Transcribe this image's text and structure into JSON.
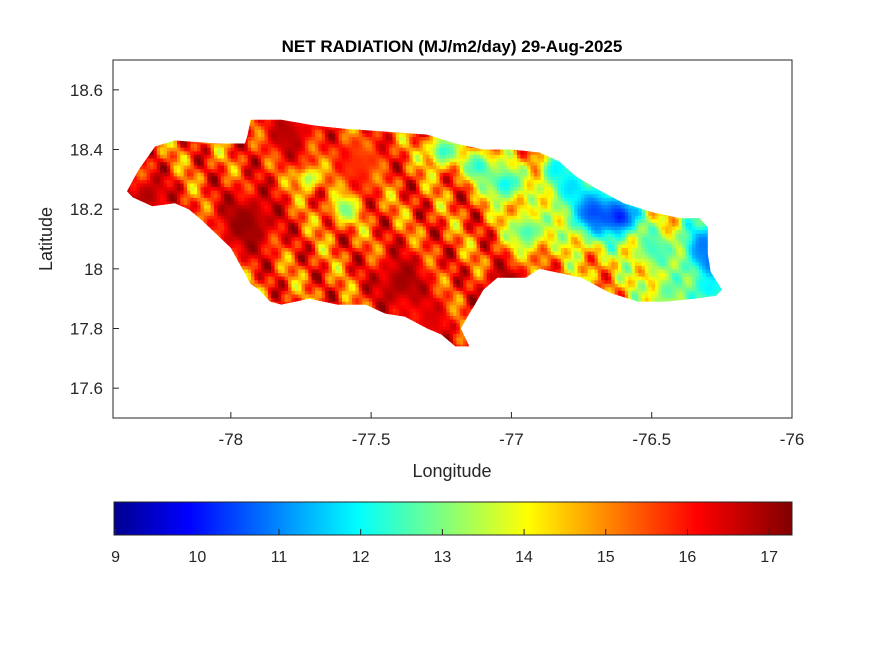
{
  "chart_data": {
    "type": "heatmap",
    "title": "NET RADIATION (MJ/m2/day) 29-Aug-2025",
    "xlabel": "Longitude",
    "ylabel": "Latitude",
    "xlim": [
      -78.42,
      -76.0
    ],
    "ylim": [
      17.5,
      18.7
    ],
    "xticks": [
      -78,
      -77.5,
      -77,
      -76.5,
      -76
    ],
    "yticks": [
      17.6,
      17.8,
      18,
      18.2,
      18.4,
      18.6
    ],
    "colorbar": {
      "colormap": "jet",
      "orientation": "horizontal",
      "placement": "below",
      "range": [
        8.98,
        17.28
      ],
      "ticks": [
        9,
        10,
        11,
        12,
        13,
        14,
        15,
        16,
        17
      ]
    },
    "grid": false,
    "region_outline_lonlat": [
      [
        -78.37,
        18.26
      ],
      [
        -78.33,
        18.33
      ],
      [
        -78.27,
        18.41
      ],
      [
        -78.2,
        18.43
      ],
      [
        -78.05,
        18.42
      ],
      [
        -77.95,
        18.42
      ],
      [
        -77.94,
        18.45
      ],
      [
        -77.93,
        18.5
      ],
      [
        -77.82,
        18.5
      ],
      [
        -77.7,
        18.48
      ],
      [
        -77.6,
        18.47
      ],
      [
        -77.45,
        18.46
      ],
      [
        -77.3,
        18.45
      ],
      [
        -77.2,
        18.42
      ],
      [
        -77.1,
        18.4
      ],
      [
        -77.0,
        18.4
      ],
      [
        -76.9,
        18.39
      ],
      [
        -76.83,
        18.36
      ],
      [
        -76.77,
        18.31
      ],
      [
        -76.7,
        18.27
      ],
      [
        -76.6,
        18.22
      ],
      [
        -76.5,
        18.19
      ],
      [
        -76.4,
        18.17
      ],
      [
        -76.33,
        18.17
      ],
      [
        -76.3,
        18.14
      ],
      [
        -76.3,
        18.05
      ],
      [
        -76.29,
        17.99
      ],
      [
        -76.25,
        17.93
      ],
      [
        -76.27,
        17.91
      ],
      [
        -76.35,
        17.9
      ],
      [
        -76.45,
        17.89
      ],
      [
        -76.55,
        17.89
      ],
      [
        -76.65,
        17.92
      ],
      [
        -76.75,
        17.97
      ],
      [
        -76.85,
        17.99
      ],
      [
        -76.9,
        18.0
      ],
      [
        -76.95,
        17.97
      ],
      [
        -77.05,
        17.97
      ],
      [
        -77.1,
        17.93
      ],
      [
        -77.13,
        17.88
      ],
      [
        -77.15,
        17.85
      ],
      [
        -77.18,
        17.8
      ],
      [
        -77.15,
        17.74
      ],
      [
        -77.2,
        17.74
      ],
      [
        -77.25,
        17.78
      ],
      [
        -77.3,
        17.8
      ],
      [
        -77.38,
        17.84
      ],
      [
        -77.45,
        17.85
      ],
      [
        -77.52,
        17.88
      ],
      [
        -77.62,
        17.88
      ],
      [
        -77.72,
        17.9
      ],
      [
        -77.82,
        17.88
      ],
      [
        -77.86,
        17.89
      ],
      [
        -77.9,
        17.93
      ],
      [
        -77.93,
        17.95
      ],
      [
        -78.0,
        18.07
      ],
      [
        -78.1,
        18.16
      ],
      [
        -78.15,
        18.2
      ],
      [
        -78.2,
        18.22
      ],
      [
        -78.28,
        18.21
      ],
      [
        -78.35,
        18.24
      ]
    ],
    "value_features": [
      {
        "lon": -76.28,
        "lat": 18.02,
        "value": 9.4,
        "spread": 0.045
      },
      {
        "lon": -76.32,
        "lat": 18.07,
        "value": 11.0,
        "spread": 0.06
      },
      {
        "lon": -76.3,
        "lat": 17.93,
        "value": 12.0,
        "spread": 0.05
      },
      {
        "lon": -76.72,
        "lat": 18.19,
        "value": 10.6,
        "spread": 0.07
      },
      {
        "lon": -76.62,
        "lat": 18.17,
        "value": 10.2,
        "spread": 0.05
      },
      {
        "lon": -76.8,
        "lat": 18.27,
        "value": 11.8,
        "spread": 0.05
      },
      {
        "lon": -76.85,
        "lat": 18.33,
        "value": 12.0,
        "spread": 0.04
      },
      {
        "lon": -77.03,
        "lat": 18.28,
        "value": 12.1,
        "spread": 0.05
      },
      {
        "lon": -77.12,
        "lat": 18.34,
        "value": 12.3,
        "spread": 0.04
      },
      {
        "lon": -76.95,
        "lat": 18.12,
        "value": 12.6,
        "spread": 0.05
      },
      {
        "lon": -76.5,
        "lat": 18.06,
        "value": 12.6,
        "spread": 0.05
      },
      {
        "lon": -76.45,
        "lat": 17.92,
        "value": 12.8,
        "spread": 0.04
      },
      {
        "lon": -77.25,
        "lat": 18.39,
        "value": 12.4,
        "spread": 0.04
      },
      {
        "lon": -77.6,
        "lat": 18.2,
        "value": 12.8,
        "spread": 0.035
      },
      {
        "lon": -77.73,
        "lat": 18.3,
        "value": 13.0,
        "spread": 0.03
      },
      {
        "lon": -77.95,
        "lat": 18.15,
        "value": 17.1,
        "spread": 0.09
      },
      {
        "lon": -77.4,
        "lat": 17.95,
        "value": 17.0,
        "spread": 0.08
      },
      {
        "lon": -77.02,
        "lat": 17.93,
        "value": 17.2,
        "spread": 0.06
      },
      {
        "lon": -78.3,
        "lat": 18.24,
        "value": 16.9,
        "spread": 0.06
      },
      {
        "lon": -77.8,
        "lat": 18.45,
        "value": 16.8,
        "spread": 0.07
      },
      {
        "lon": -77.3,
        "lat": 17.82,
        "value": 16.5,
        "spread": 0.06
      },
      {
        "lon": -77.55,
        "lat": 18.35,
        "value": 15.9,
        "spread": 0.07
      }
    ]
  }
}
